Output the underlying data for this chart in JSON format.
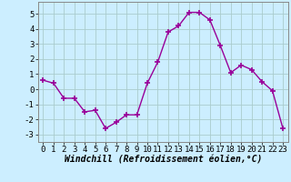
{
  "x": [
    0,
    1,
    2,
    3,
    4,
    5,
    6,
    7,
    8,
    9,
    10,
    11,
    12,
    13,
    14,
    15,
    16,
    17,
    18,
    19,
    20,
    21,
    22,
    23
  ],
  "y": [
    0.6,
    0.4,
    -0.6,
    -0.6,
    -1.5,
    -1.4,
    -2.6,
    -2.2,
    -1.7,
    -1.7,
    0.4,
    1.8,
    3.8,
    4.2,
    5.1,
    5.1,
    4.6,
    2.9,
    1.1,
    1.6,
    1.3,
    0.5,
    -0.1,
    -2.6
  ],
  "line_color": "#990099",
  "marker": "+",
  "marker_size": 4,
  "bg_color": "#cceeff",
  "grid_color": "#aacccc",
  "xlabel": "Windchill (Refroidissement éolien,°C)",
  "xlabel_fontsize": 7,
  "yticks": [
    -3,
    -2,
    -1,
    0,
    1,
    2,
    3,
    4,
    5
  ],
  "xticks": [
    0,
    1,
    2,
    3,
    4,
    5,
    6,
    7,
    8,
    9,
    10,
    11,
    12,
    13,
    14,
    15,
    16,
    17,
    18,
    19,
    20,
    21,
    22,
    23
  ],
  "ylim": [
    -3.5,
    5.8
  ],
  "xlim": [
    -0.5,
    23.5
  ],
  "tick_fontsize": 6.5,
  "line_width": 1.0
}
